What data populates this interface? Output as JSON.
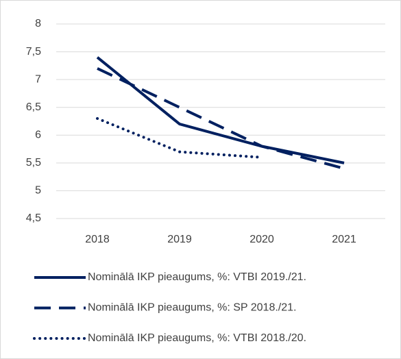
{
  "chart_data": {
    "type": "line",
    "categories": [
      "2018",
      "2019",
      "2020",
      "2021"
    ],
    "series": [
      {
        "name": "Nominālā IKP pieaugums, %: VTBI 2019./21.",
        "color": "#002060",
        "dash": "solid",
        "values": [
          7.4,
          6.2,
          5.8,
          5.5
        ]
      },
      {
        "name": "Nominālā IKP pieaugums, %: SP 2018./21.",
        "color": "#002060",
        "dash": "dashed",
        "values": [
          7.2,
          6.5,
          5.8,
          5.4
        ]
      },
      {
        "name": "Nominālā IKP pieaugums, %: VTBI 2018./20.",
        "color": "#002060",
        "dash": "dotted",
        "values": [
          6.3,
          5.7,
          5.6,
          null
        ]
      }
    ],
    "ylim": [
      4.5,
      8
    ],
    "yticks": [
      {
        "value": 4.5,
        "label": "4,5"
      },
      5,
      {
        "value": 5.5,
        "label": "5,5"
      },
      6,
      {
        "value": 6.5,
        "label": "6,5"
      },
      7,
      {
        "value": 7.5,
        "label": "7,5"
      },
      8
    ],
    "grid": true,
    "legend": "bottom"
  }
}
